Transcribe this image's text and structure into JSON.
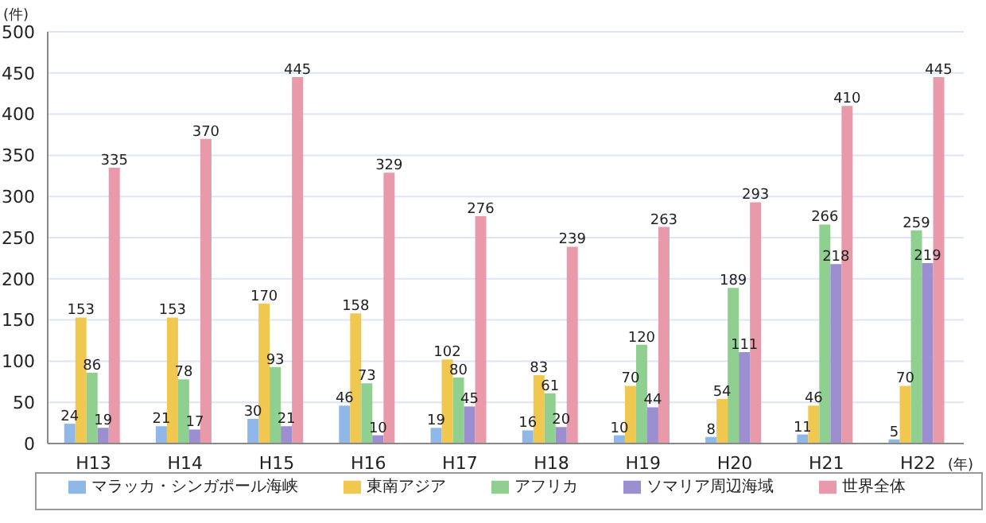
{
  "chart_data": {
    "type": "bar",
    "ylabel": "(件)",
    "xlabel": "(年)",
    "categories": [
      "H13",
      "H14",
      "H15",
      "H16",
      "H17",
      "H18",
      "H19",
      "H20",
      "H21",
      "H22"
    ],
    "series": [
      {
        "name": "マラッカ・シンガポール海峡",
        "color": "#8fb8e8",
        "values": [
          24,
          21,
          30,
          46,
          19,
          16,
          10,
          8,
          11,
          5
        ]
      },
      {
        "name": "東南アジア",
        "color": "#f0c850",
        "values": [
          153,
          153,
          170,
          158,
          102,
          83,
          70,
          54,
          46,
          70
        ]
      },
      {
        "name": "アフリカ",
        "color": "#8fcf90",
        "values": [
          86,
          78,
          93,
          73,
          80,
          61,
          120,
          189,
          266,
          259
        ]
      },
      {
        "name": "ソマリア周辺海域",
        "color": "#9b8fd0",
        "values": [
          19,
          17,
          21,
          10,
          45,
          20,
          44,
          111,
          218,
          219
        ]
      },
      {
        "name": "世界全体",
        "color": "#e89aaa",
        "values": [
          335,
          370,
          445,
          329,
          276,
          239,
          263,
          293,
          410,
          445
        ]
      }
    ],
    "ylim": [
      0,
      500
    ],
    "yticks": [
      0,
      50,
      100,
      150,
      200,
      250,
      300,
      350,
      400,
      450,
      500
    ],
    "grid": "y",
    "legend": "bottom",
    "data_labels": true
  }
}
